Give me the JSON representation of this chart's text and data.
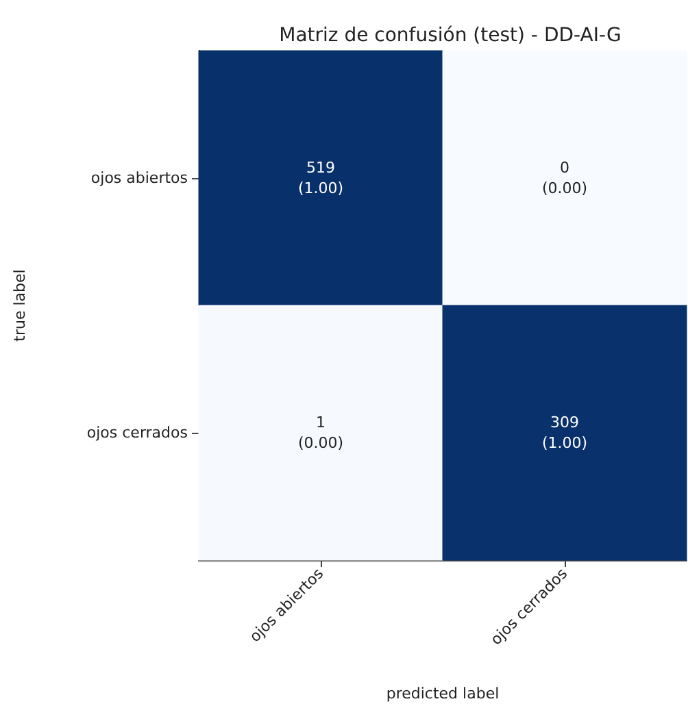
{
  "chart_data": {
    "type": "heatmap",
    "title": "Matriz de confusión (test) - DD-AI-G",
    "xlabel": "predicted label",
    "ylabel": "true label",
    "categories": [
      "ojos abiertos",
      "ojos cerrados"
    ],
    "y_categories": [
      "ojos abiertos",
      "ojos cerrados"
    ],
    "cells": [
      [
        519,
        0
      ],
      [
        1,
        309
      ]
    ],
    "data_labels": true,
    "annotations": [
      "(1.00)",
      "(0.00)",
      "(0.00)",
      "(1.00)"
    ]
  }
}
